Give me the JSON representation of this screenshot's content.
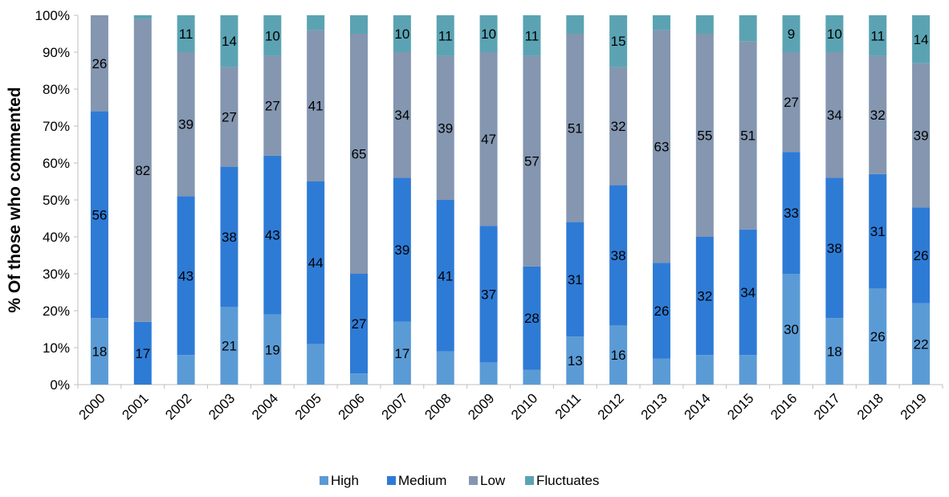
{
  "chart_data": {
    "type": "bar",
    "stacked": true,
    "percent": true,
    "title": "",
    "xlabel": "",
    "ylabel": "% Of those who commented",
    "ylim": [
      0,
      100
    ],
    "yticks": [
      "0%",
      "10%",
      "20%",
      "30%",
      "40%",
      "50%",
      "60%",
      "70%",
      "80%",
      "90%",
      "100%"
    ],
    "grid": false,
    "legend_position": "bottom",
    "categories": [
      "2000",
      "2001",
      "2002",
      "2003",
      "2004",
      "2005",
      "2006",
      "2007",
      "2008",
      "2009",
      "2010",
      "2011",
      "2012",
      "2013",
      "2014",
      "2015",
      "2016",
      "2017",
      "2018",
      "2019"
    ],
    "series": [
      {
        "name": "High",
        "color": "#5b9bd5",
        "values": [
          18,
          0,
          8,
          21,
          19,
          11,
          3,
          17,
          9,
          6,
          4,
          13,
          16,
          7,
          8,
          8,
          30,
          18,
          26,
          22
        ],
        "labels": [
          "18",
          "",
          "",
          "21",
          "19",
          "",
          "",
          "17",
          "",
          "",
          "",
          "13",
          "16",
          "",
          "",
          "",
          "30",
          "18",
          "26",
          "22"
        ]
      },
      {
        "name": "Medium",
        "color": "#2e7bd6",
        "values": [
          56,
          17,
          43,
          38,
          43,
          44,
          27,
          39,
          41,
          37,
          28,
          31,
          38,
          26,
          32,
          34,
          33,
          38,
          31,
          26
        ],
        "labels": [
          "56",
          "17",
          "43",
          "38",
          "43",
          "44",
          "27",
          "39",
          "41",
          "37",
          "28",
          "31",
          "38",
          "26",
          "32",
          "34",
          "33",
          "38",
          "31",
          "26"
        ]
      },
      {
        "name": "Low",
        "color": "#8496b0",
        "values": [
          26,
          82,
          39,
          27,
          27,
          41,
          65,
          34,
          39,
          47,
          57,
          51,
          32,
          63,
          55,
          51,
          27,
          34,
          32,
          39
        ],
        "labels": [
          "26",
          "82",
          "39",
          "27",
          "27",
          "41",
          "65",
          "34",
          "39",
          "47",
          "57",
          "51",
          "32",
          "63",
          "55",
          "51",
          "27",
          "34",
          "32",
          "39"
        ]
      },
      {
        "name": "Fluctuates",
        "color": "#5ba3b3",
        "values": [
          0,
          1,
          11,
          14,
          10,
          4,
          5,
          10,
          11,
          10,
          11,
          5,
          15,
          4,
          5,
          7,
          9,
          10,
          11,
          14
        ],
        "labels": [
          "",
          "",
          "11",
          "14",
          "10",
          "",
          "",
          "10",
          "11",
          "10",
          "11",
          "",
          "15",
          "",
          "",
          "",
          "9",
          "10",
          "11",
          "14"
        ]
      }
    ]
  }
}
